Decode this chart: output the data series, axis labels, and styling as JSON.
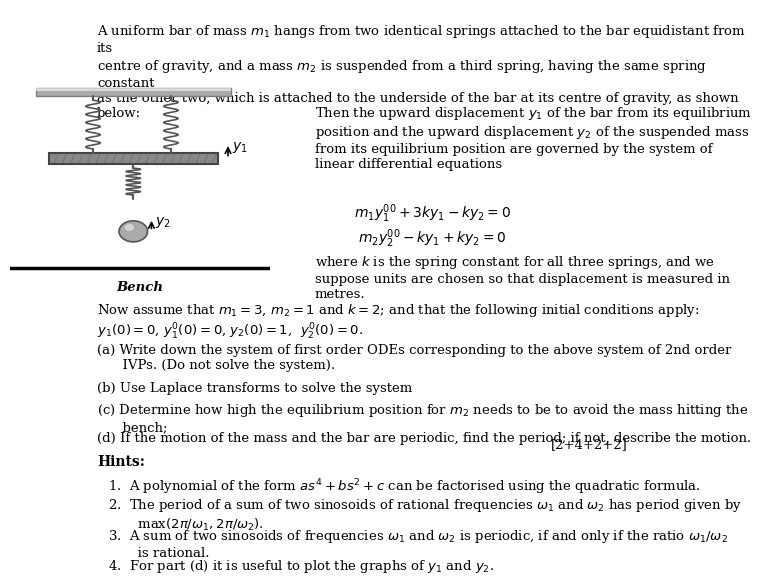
{
  "bg_color": "#ffffff",
  "text_color": "#000000",
  "fig_width": 7.21,
  "fig_height": 6.84,
  "intro_text": "A uniform bar of mass $m_1$ hangs from two identical springs attached to the bar equidistant from its\ncentre of gravity, and a mass $m_2$ is suspended from a third spring, having the same spring constant\nas the other two, which is attached to the underside of the bar at its centre of gravity, as shown\nbelow:",
  "right_text_1": "Then the upward displacement $y_1$ of the bar from its equilibrium\nposition and the upward displacement $y_2$ of the suspended mass\nfrom its equilibrium position are governed by the system of\nlinear differential equations",
  "eq1": "$m_1y_1'' + 3ky_1 - ky_2 = 0$",
  "eq2": "$m_2y_2'' - ky_1 + ky_2 = 0$",
  "right_text_2": "where $k$ is the spring constant for all three springs, and we\nsuppose units are chosen so that displacement is measured in\nmetres.",
  "bench_label": "Bench",
  "assume_text": "Now assume that $m_1 = 3$, $m_2 = 1$ and $k = 2$; and that the following initial conditions apply:\n$y_1(0) = 0$, $y_1'(0) = 0$, $y_2(0) = 1$,  $y_2'(0) = 0$.",
  "part_a": "(a) Write down the system of first order ODEs corresponding to the above system of 2nd order\n      IVPs. (Do not solve the system).",
  "part_b": "(b) Use Laplace transforms to solve the system",
  "part_c": "(c) Determine how high the equilibrium position for $m_2$ needs to be to avoid the mass hitting the\n      bench;",
  "part_d": "(d) If the motion of the mass and the bar are periodic, find the period; if not, describe the motion.",
  "marks": "[2+4+2+2]",
  "hints_title": "Hints:",
  "hint1": "1.  A polynomial of the form $as^4 + bs^2 + c$ can be factorised using the quadratic formula.",
  "hint2": "2.  The period of a sum of two sinosoids of rational frequencies $\\omega_1$ and $\\omega_2$ has period given by\n       max$(2\\pi/\\omega_1, 2\\pi/\\omega_2)$.",
  "hint3": "3.  A sum of two sinosoids of frequencies $\\omega_1$ and $\\omega_2$ is periodic, if and only if the ratio $\\omega_1/\\omega_2$\n       is rational.",
  "hint4": "4.  For part (d) it is useful to plot the graphs of $y_1$ and $y_2$."
}
